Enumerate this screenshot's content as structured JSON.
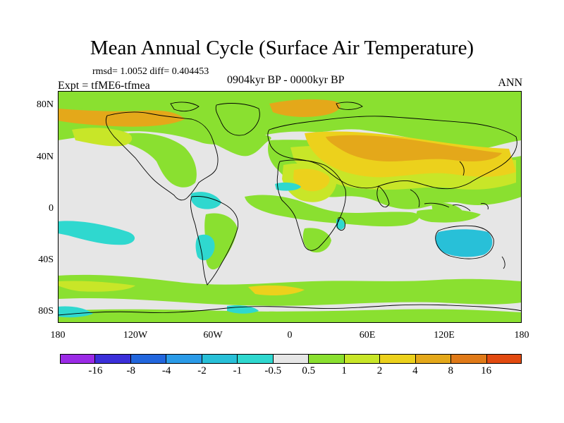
{
  "title": "Mean Annual Cycle (Surface Air Temperature)",
  "stats": "rmsd= 1.0052 diff= 0.404453",
  "experiment": "Expt = tfME6-tfmea",
  "period": "0904kyr BP - 0000kyr BP",
  "season": "ANN",
  "lat_labels": [
    "80N",
    "40N",
    "0",
    "40S",
    "80S"
  ],
  "lon_labels": [
    "180",
    "120W",
    "60W",
    "0",
    "60E",
    "120E",
    "180"
  ],
  "colorbar": {
    "colors": [
      "#9b2ae6",
      "#3b2fd9",
      "#2266dd",
      "#2a9be8",
      "#28c0d8",
      "#2fd8cf",
      "#e6e6e6",
      "#8ae030",
      "#c8e628",
      "#ecd11c",
      "#e4a81a",
      "#e07a18",
      "#e24a10"
    ],
    "labels": [
      "-16",
      "-8",
      "-4",
      "-2",
      "-1",
      "-0.5",
      "0.5",
      "1",
      "2",
      "4",
      "8",
      "16"
    ]
  },
  "palette": {
    "neutral": "#e6e6e6",
    "green": "#8ae030",
    "yellow_green": "#c8e628",
    "yellow": "#ecd11c",
    "orange": "#e4a81a",
    "cyan": "#2fd8cf",
    "light_blue": "#28c0d8",
    "coast": "#000000"
  }
}
